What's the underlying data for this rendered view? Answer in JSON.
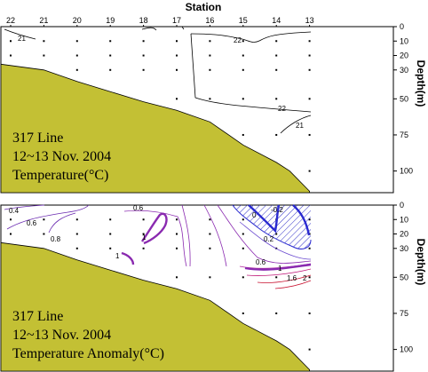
{
  "chart_data": [
    {
      "type": "contour",
      "xlabel": "Station",
      "ylabel": "Depth(m)",
      "stations": [
        22,
        21,
        20,
        19,
        18,
        17,
        16,
        15,
        14,
        13
      ],
      "depth_ticks": [
        0,
        10,
        20,
        30,
        50,
        75,
        100
      ],
      "ylim": [
        0,
        115
      ],
      "annotation": [
        "317 Line",
        "12~13 Nov. 2004",
        "Temperature(°C)"
      ],
      "contour_labels": [
        "21",
        "22",
        "22",
        "21"
      ],
      "bottom_profile": [
        {
          "station": 22,
          "depth": 26
        },
        {
          "station": 21,
          "depth": 30
        },
        {
          "station": 20,
          "depth": 38
        },
        {
          "station": 19,
          "depth": 45
        },
        {
          "station": 18,
          "depth": 52
        },
        {
          "station": 17,
          "depth": 58
        },
        {
          "station": 16,
          "depth": 66
        },
        {
          "station": 15,
          "depth": 82
        },
        {
          "station": 14,
          "depth": 94
        },
        {
          "station": 13.6,
          "depth": 100
        },
        {
          "station": 13,
          "depth": 114
        }
      ],
      "colors": {
        "land": "#c3c034",
        "land_edge": "#000000",
        "contour": "#000000"
      }
    },
    {
      "type": "contour",
      "xlabel": "",
      "ylabel": "Depth(m)",
      "stations": [
        22,
        21,
        20,
        19,
        18,
        17,
        16,
        15,
        14,
        13
      ],
      "depth_ticks": [
        0,
        10,
        20,
        30,
        50,
        75,
        100
      ],
      "ylim": [
        0,
        115
      ],
      "annotation": [
        "317 Line",
        "12~13 Nov. 2004",
        "Temperature Anomaly(°C)"
      ],
      "contour_labels": [
        "0.4",
        "0.6",
        "0.8",
        "0.6",
        "1",
        "1",
        "0",
        "-0.2",
        "0.2",
        "0.6",
        "1",
        "1.6",
        "2"
      ],
      "bottom_profile": [
        {
          "station": 22,
          "depth": 26
        },
        {
          "station": 21,
          "depth": 30
        },
        {
          "station": 20,
          "depth": 38
        },
        {
          "station": 19,
          "depth": 45
        },
        {
          "station": 18,
          "depth": 52
        },
        {
          "station": 17,
          "depth": 58
        },
        {
          "station": 16,
          "depth": 66
        },
        {
          "station": 15,
          "depth": 82
        },
        {
          "station": 14,
          "depth": 94
        },
        {
          "station": 13.6,
          "depth": 100
        },
        {
          "station": 13,
          "depth": 114
        }
      ],
      "colors": {
        "land": "#c3c034",
        "contour_low": "#2a2ad0",
        "contour_mid": "#8a2ab0",
        "contour_high": "#c8102e",
        "hatch": "#3030c8"
      }
    }
  ]
}
